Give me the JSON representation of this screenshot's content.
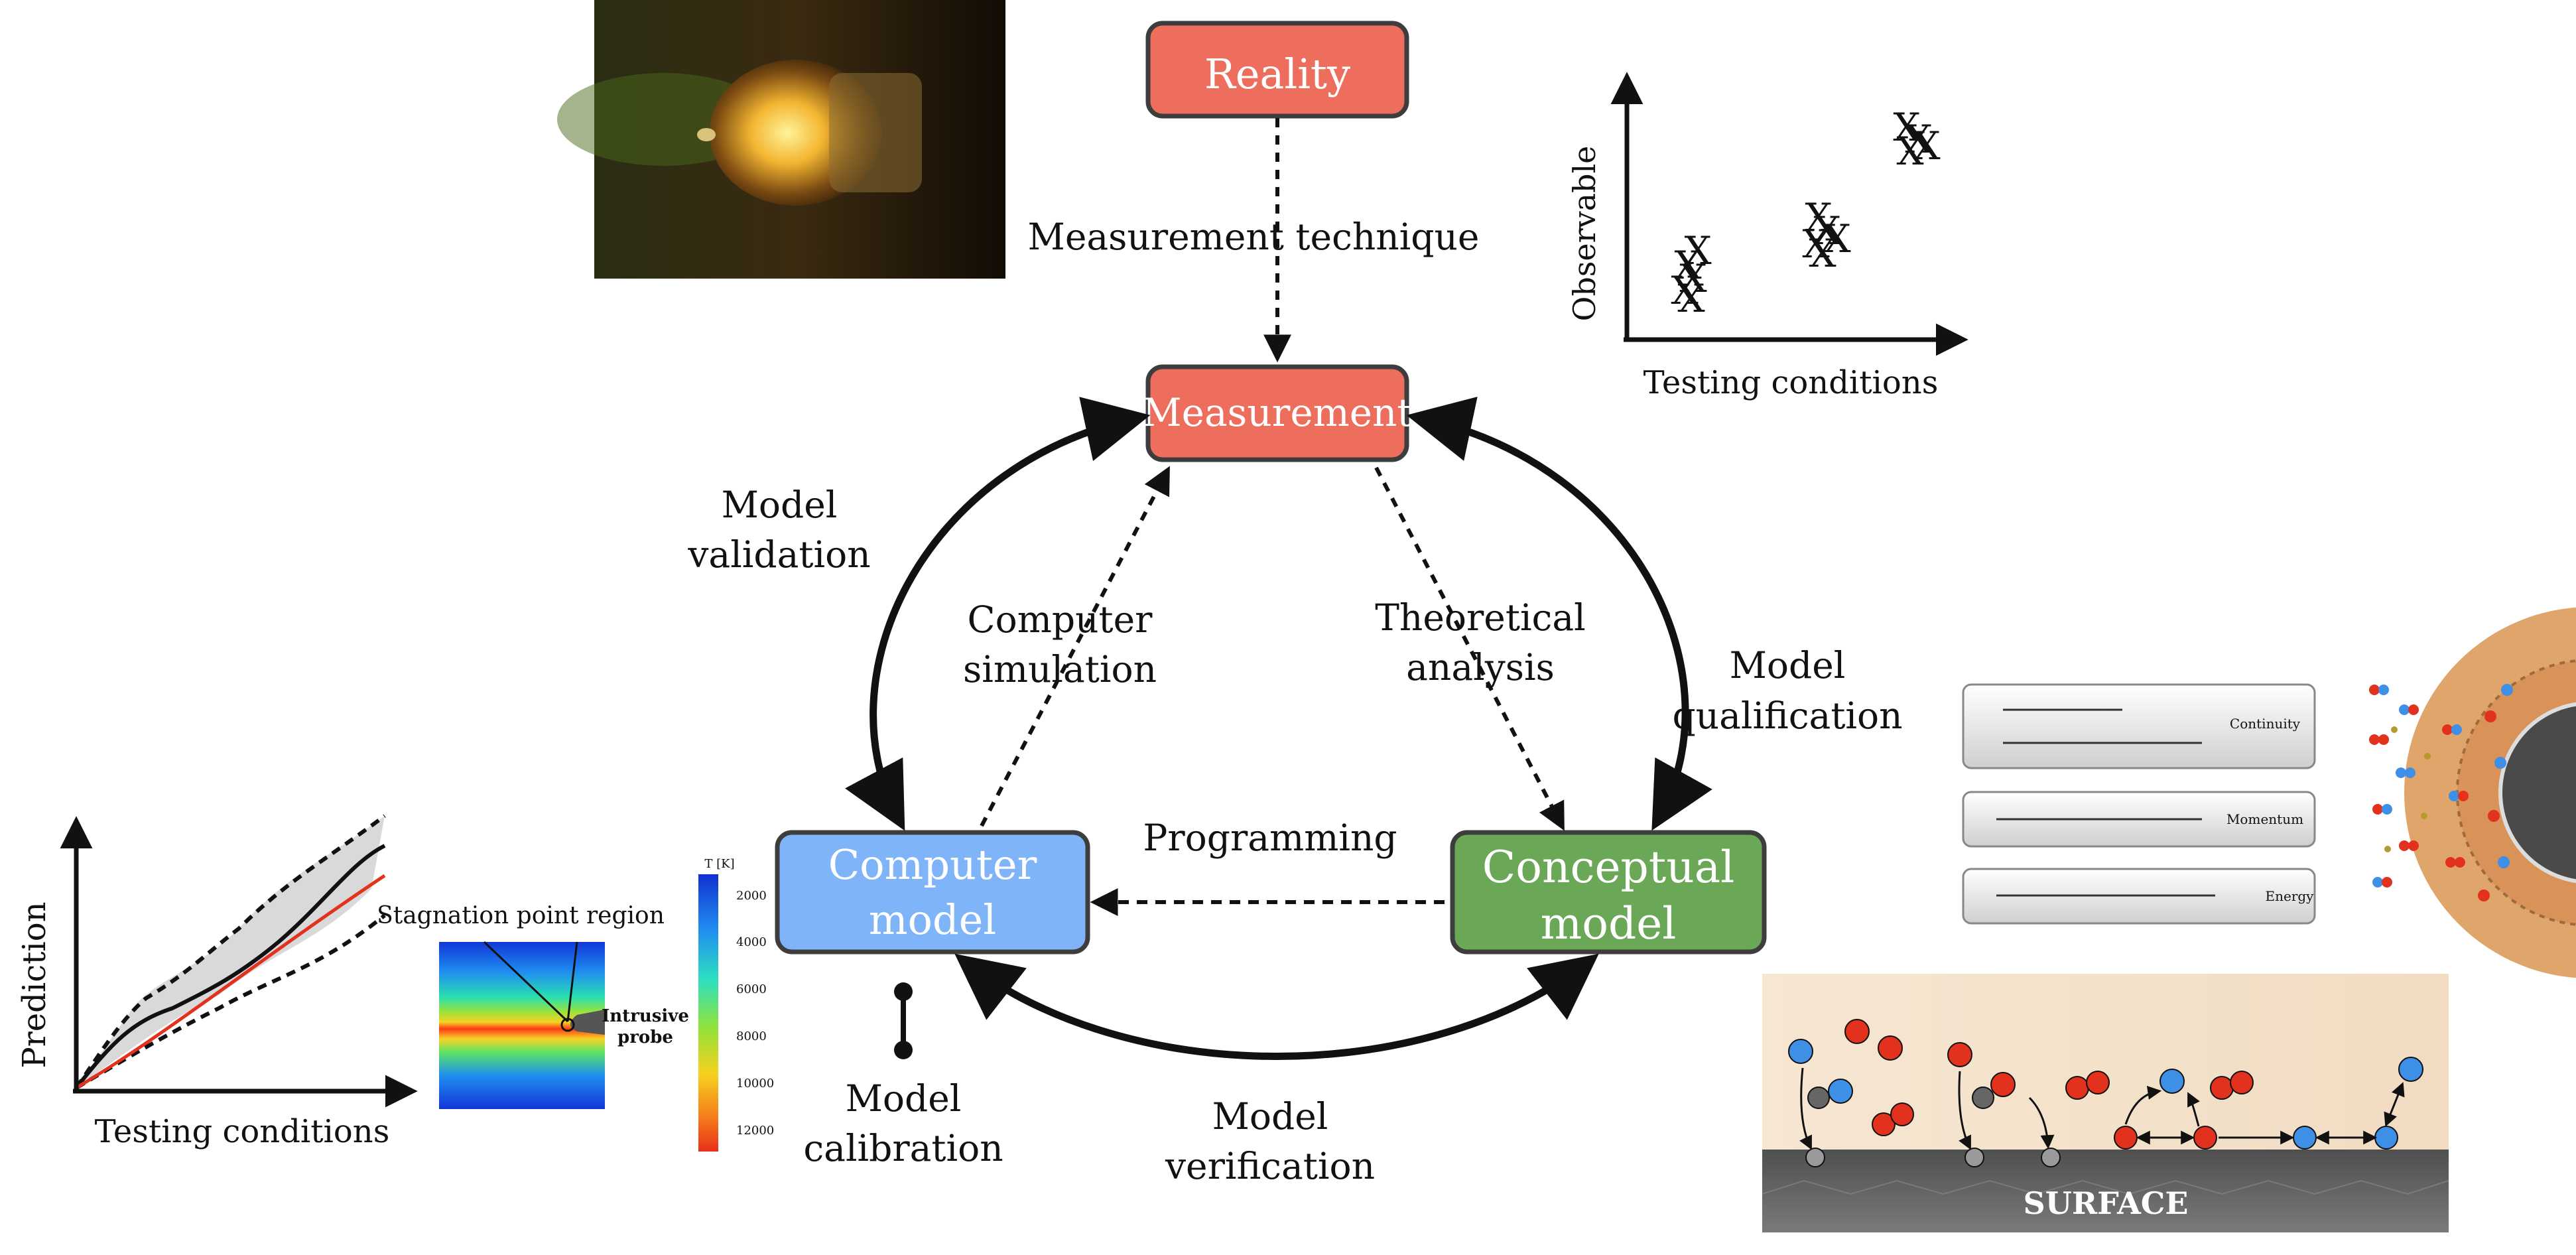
{
  "boxes": {
    "reality": "Reality",
    "measurement": "Measurement",
    "computer_model": [
      "Computer",
      "model"
    ],
    "conceptual_model": [
      "Conceptual",
      "model"
    ]
  },
  "edge_labels": {
    "measurement_technique": "Measurement technique",
    "model_validation": [
      "Model",
      "validation"
    ],
    "computer_simulation": [
      "Computer",
      "simulation"
    ],
    "theoretical_analysis": [
      "Theoretical",
      "analysis"
    ],
    "model_qualification": [
      "Model",
      "qualification"
    ],
    "programming": "Programming",
    "model_calibration": [
      "Model",
      "calibration"
    ],
    "model_verification": [
      "Model",
      "verification"
    ]
  },
  "observable_plot": {
    "ylabel": "Observable",
    "xlabel": "Testing conditions",
    "marker": "X"
  },
  "prediction_plot": {
    "ylabel": "Prediction",
    "xlabel": "Testing conditions"
  },
  "temperature_map": {
    "title": "Stagnation point region",
    "probe_label": [
      "Intrusive",
      "probe"
    ],
    "colorbar_title": "T [K]",
    "colorbar_ticks": [
      "2000",
      "4000",
      "6000",
      "8000",
      "10000",
      "12000"
    ]
  },
  "equations": {
    "continuity_label": "Continuity",
    "momentum_label": "Momentum",
    "energy_label": "Energy"
  },
  "surface_panel": {
    "label": "SURFACE"
  },
  "colors": {
    "red_box": "#EE6E5E",
    "blue_box": "#7FB5F8",
    "green_box": "#6AA757",
    "box_border": "#3d3d3d",
    "atom_red": "#E2321E",
    "atom_blue": "#3E8FE6"
  }
}
